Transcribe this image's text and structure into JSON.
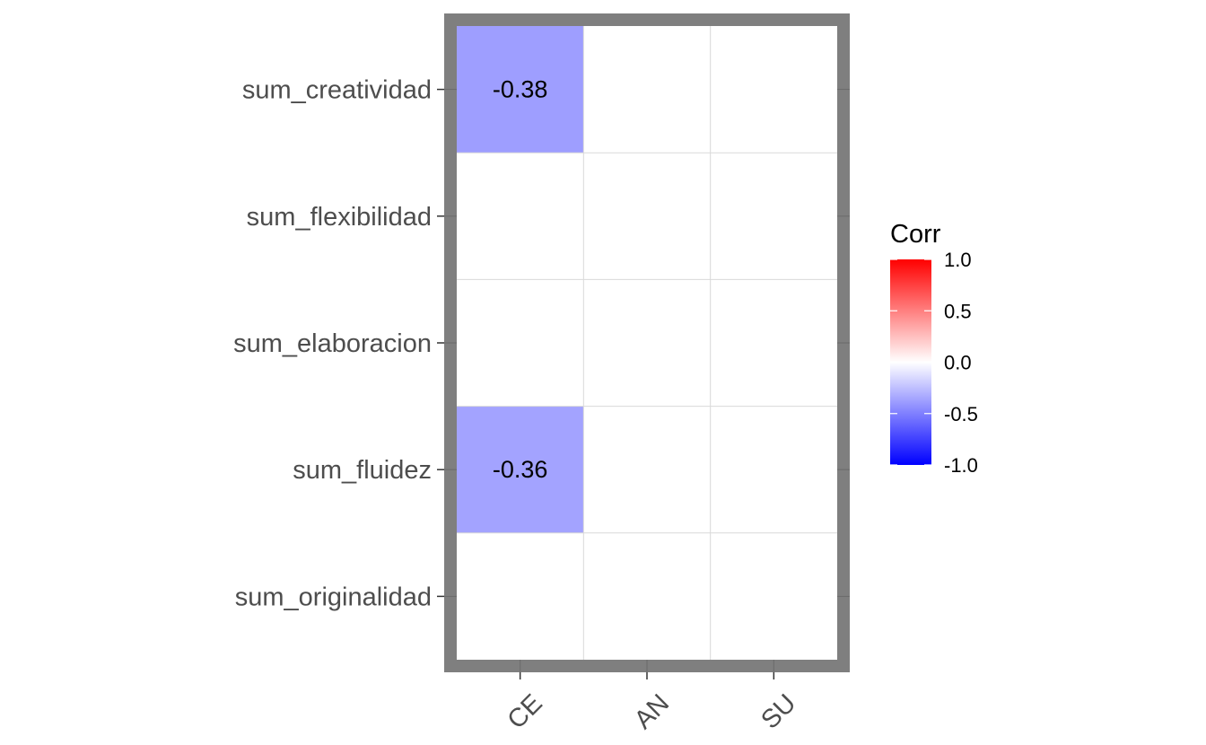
{
  "chart_data": {
    "type": "heatmap",
    "x_categories": [
      "CE",
      "AN",
      "SU"
    ],
    "y_categories": [
      "sum_creatividad",
      "sum_flexibilidad",
      "sum_elaboracion",
      "sum_fluidez",
      "sum_originalidad"
    ],
    "cells": [
      {
        "x": "CE",
        "y": "sum_creatividad",
        "value": -0.38,
        "label": "-0.38"
      },
      {
        "x": "CE",
        "y": "sum_fluidez",
        "value": -0.36,
        "label": "-0.36"
      }
    ],
    "legend": {
      "title": "Corr",
      "ticks": [
        {
          "value": 1.0,
          "label": "1.0"
        },
        {
          "value": 0.5,
          "label": "0.5"
        },
        {
          "value": 0.0,
          "label": "0.0"
        },
        {
          "value": -0.5,
          "label": "-0.5"
        },
        {
          "value": -1.0,
          "label": "-1.0"
        }
      ],
      "limits": [
        -1.0,
        1.0
      ],
      "colors": {
        "low": "#0000ff",
        "mid": "#ffffff",
        "high": "#ff0000"
      },
      "placement": "right"
    },
    "colors": {
      "panel_border": "#7f7f7f",
      "grid": "#d9d9d9",
      "tick_text": "#4d4d4d"
    },
    "x_tick_rotation_deg": 45
  }
}
